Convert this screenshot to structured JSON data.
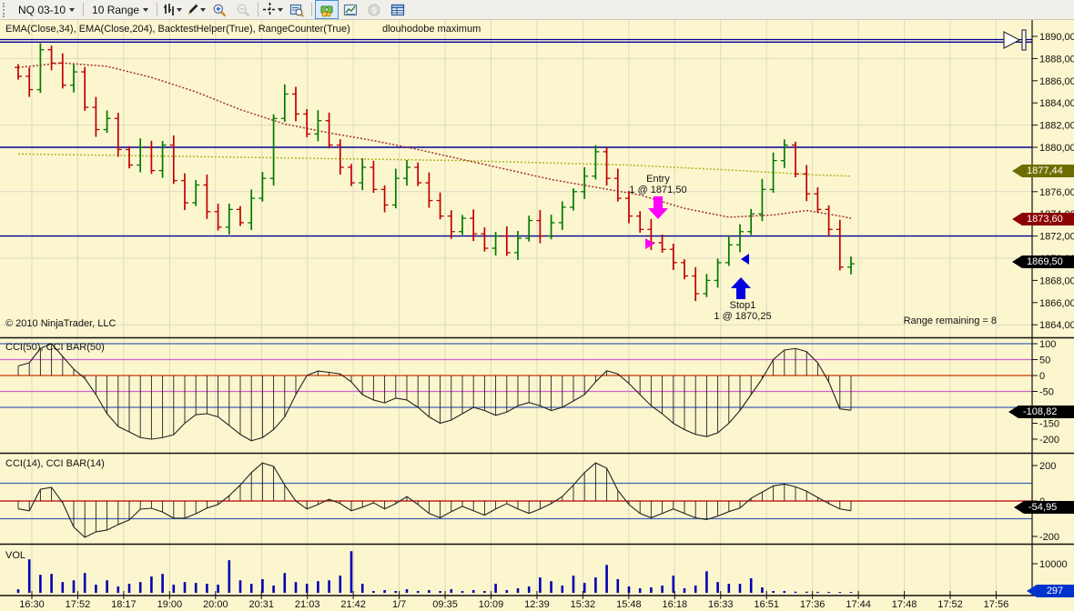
{
  "colors": {
    "background": "#fcf6ce",
    "bar_up": "#007a00",
    "bar_down": "#c00000",
    "ema34": "#a03030",
    "ema204": "#b3b324",
    "navy_line": "#000099",
    "cci_zero": "#cc3300",
    "cci_pink": "#cc66cc",
    "cci_blue": "#3c64b4",
    "volume": "#0000b0",
    "badge_ema204": "#6e6e00",
    "badge_ema34": "#8b0000",
    "badge_black": "#000000",
    "badge_volume": "#0033cc",
    "entry_marker": "#ff00ff",
    "stop_marker": "#0000e0"
  },
  "toolbar": {
    "instrument": "NQ 03-10",
    "interval": "10 Range",
    "icons": [
      "chart-style-icon",
      "drawing-tools-icon",
      "zoom-in-icon",
      "zoom-out-icon",
      "crosshair-icon",
      "data-box-icon",
      "chart-trader-icon",
      "chart-window-icon",
      "dollar-icon",
      "data-grid-icon"
    ]
  },
  "chart": {
    "indicator_label": "EMA(Close,34), EMA(Close,204), BacktestHelper(True), RangeCounter(True)",
    "annotation_max": "dlouhodobe maximum",
    "copyright": "© 2010 NinjaTrader, LLC",
    "range_remaining": "Range remaining = 8",
    "entry": {
      "line1": "Entry",
      "line2": "1 @ 1871,50"
    },
    "stop": {
      "line1": "Stop1",
      "line2": "1 @ 1870,25"
    }
  },
  "badges": {
    "ema204": "1877,44",
    "ema34": "1873,60",
    "last_price": "1869,50",
    "cci50": "-108,82",
    "cci14": "-54,95",
    "volume": "297"
  },
  "panels": {
    "cci50": {
      "label": "CCI(50), CCI BAR(50)"
    },
    "cci14": {
      "label": "CCI(14), CCI BAR(14)"
    },
    "vol": {
      "label": "VOL"
    }
  },
  "chart_data": {
    "type": "bar",
    "x_labels": [
      "16:30",
      "17:52",
      "18:17",
      "19:00",
      "20:00",
      "20:31",
      "21:03",
      "21:42",
      "1/7",
      "09:35",
      "10:09",
      "12:39",
      "15:32",
      "15:48",
      "16:18",
      "16:33",
      "16:51",
      "17:36",
      "17:44",
      "17:48",
      "17:52",
      "17:56"
    ],
    "panels": {
      "price": {
        "first_open": 1887.2,
        "closes": [
          1886.4,
          1885.2,
          1888.8,
          1887.6,
          1885.6,
          1886.8,
          1883.6,
          1881.6,
          1882.6,
          1879.8,
          1878.4,
          1880.0,
          1877.9,
          1880.2,
          1877.0,
          1875.0,
          1876.6,
          1874.2,
          1872.8,
          1874.4,
          1873.2,
          1875.4,
          1877.2,
          1882.6,
          1884.8,
          1883.0,
          1881.2,
          1882.4,
          1880.2,
          1878.2,
          1876.8,
          1878.2,
          1876.2,
          1874.8,
          1877.2,
          1878.2,
          1876.8,
          1875.2,
          1873.8,
          1872.4,
          1873.6,
          1872.2,
          1870.9,
          1872.0,
          1870.5,
          1871.8,
          1873.4,
          1872.0,
          1873.2,
          1874.6,
          1876.0,
          1877.4,
          1879.6,
          1877.2,
          1875.4,
          1873.8,
          1872.6,
          1871.4,
          1870.8,
          1869.6,
          1868.4,
          1866.8,
          1868.0,
          1869.6,
          1871.2,
          1872.4,
          1874.0,
          1876.2,
          1878.8,
          1880.2,
          1877.6,
          1875.8,
          1874.4,
          1872.6,
          1869.2,
          1869.5
        ],
        "ema34": [
          [
            0,
            1887.2
          ],
          [
            4,
            1887.6
          ],
          [
            8,
            1887.3
          ],
          [
            12,
            1886.3
          ],
          [
            16,
            1885.0
          ],
          [
            20,
            1883.4
          ],
          [
            24,
            1882.1
          ],
          [
            28,
            1881.3
          ],
          [
            32,
            1880.6
          ],
          [
            36,
            1879.8
          ],
          [
            40,
            1878.9
          ],
          [
            44,
            1878.0
          ],
          [
            48,
            1877.1
          ],
          [
            52,
            1876.4
          ],
          [
            56,
            1875.7
          ],
          [
            60,
            1874.5
          ],
          [
            64,
            1873.7
          ],
          [
            68,
            1873.9
          ],
          [
            71,
            1874.3
          ],
          [
            74,
            1873.8
          ],
          [
            75,
            1873.6
          ]
        ],
        "ema204": [
          [
            0,
            1879.4
          ],
          [
            20,
            1879.1
          ],
          [
            40,
            1878.8
          ],
          [
            55,
            1878.4
          ],
          [
            65,
            1877.9
          ],
          [
            72,
            1877.5
          ],
          [
            75,
            1877.4
          ]
        ],
        "hlines": [
          1880,
          1872
        ],
        "max_line_price": 1889.7,
        "ticks": [
          [
            1890,
            "1890,00"
          ],
          [
            1888,
            "1888,00"
          ],
          [
            1886,
            "1886,00"
          ],
          [
            1884,
            "1884,00"
          ],
          [
            1882,
            "1882,00"
          ],
          [
            1880,
            "1880,00"
          ],
          [
            1878,
            "1878,00"
          ],
          [
            1876,
            "1876,00"
          ],
          [
            1874,
            "1874,00"
          ],
          [
            1872,
            "1872,00"
          ],
          [
            1870,
            "1870,00"
          ],
          [
            1868,
            "1868,00"
          ],
          [
            1866,
            "1866,00"
          ],
          [
            1864,
            "1864,00"
          ]
        ],
        "entry_price": 1871.5,
        "stop_price": 1870.25,
        "last_price": 1869.5
      },
      "cci50": {
        "values": [
          30,
          40,
          85,
          100,
          60,
          20,
          -9,
          -60,
          -120,
          -160,
          -177,
          -195,
          -200,
          -195,
          -186,
          -150,
          -123,
          -120,
          -130,
          -157,
          -185,
          -205,
          -195,
          -170,
          -130,
          -60,
          0,
          14,
          10,
          5,
          -20,
          -60,
          -77,
          -86,
          -71,
          -77,
          -100,
          -130,
          -150,
          -140,
          -120,
          -100,
          -110,
          -125,
          -115,
          -95,
          -85,
          -95,
          -110,
          -100,
          -80,
          -60,
          -20,
          15,
          5,
          -25,
          -60,
          -95,
          -120,
          -150,
          -170,
          -185,
          -192,
          -180,
          -150,
          -110,
          -60,
          -10,
          50,
          80,
          85,
          75,
          40,
          -20,
          -105,
          -109
        ],
        "levels": [
          [
            100,
            "#3c64b4"
          ],
          [
            50,
            "#cc66cc"
          ],
          [
            0,
            "#cc3300"
          ],
          [
            -50,
            "#cc66cc"
          ],
          [
            -100,
            "#3c64b4"
          ]
        ],
        "ticks": [
          [
            100,
            "100"
          ],
          [
            50,
            "50"
          ],
          [
            0,
            "0"
          ],
          [
            -50,
            "-50"
          ],
          [
            -150,
            "-150"
          ],
          [
            -200,
            "-200"
          ]
        ],
        "last": -108.82
      },
      "cci14": {
        "values": [
          -44,
          -56,
          66,
          77,
          -10,
          -147,
          -205,
          -174,
          -164,
          -133,
          -107,
          -46,
          -41,
          -62,
          -97,
          -97,
          -72,
          -40,
          -20,
          30,
          90,
          160,
          215,
          195,
          90,
          0,
          -45,
          -20,
          10,
          -15,
          -55,
          -35,
          -10,
          -45,
          -15,
          25,
          -20,
          -70,
          -95,
          -60,
          -30,
          -55,
          -80,
          -45,
          -15,
          -45,
          -70,
          -45,
          -15,
          25,
          90,
          160,
          215,
          185,
          60,
          -20,
          -70,
          -95,
          -70,
          -45,
          -70,
          -95,
          -105,
          -85,
          -60,
          -40,
          15,
          50,
          85,
          95,
          80,
          55,
          20,
          -15,
          -45,
          -55
        ],
        "levels": [
          [
            100,
            "#3c64b4"
          ],
          [
            0,
            "#bb0000"
          ],
          [
            -100,
            "#3c64b4"
          ]
        ],
        "ticks": [
          [
            200,
            "200"
          ],
          [
            0,
            "0"
          ],
          [
            -200,
            "-200"
          ]
        ],
        "last": -54.95
      },
      "volume": {
        "values": [
          1200,
          11500,
          6200,
          6500,
          3700,
          4300,
          6800,
          2800,
          4300,
          2200,
          3100,
          3700,
          5600,
          6500,
          2800,
          3700,
          3400,
          3100,
          2800,
          11200,
          4300,
          3100,
          4700,
          2500,
          6800,
          3700,
          3100,
          4000,
          4300,
          5900,
          14300,
          3100,
          620,
          930,
          620,
          1240,
          620,
          930,
          620,
          1240,
          620,
          930,
          620,
          3100,
          930,
          1550,
          2200,
          5300,
          4000,
          2500,
          5900,
          3400,
          5300,
          9600,
          4700,
          2200,
          1550,
          1860,
          2500,
          5900,
          1550,
          2500,
          7400,
          3700,
          3100,
          3100,
          5000,
          1860,
          620,
          620,
          400,
          400,
          350,
          320,
          300,
          297
        ],
        "ticks": [
          [
            10000,
            "10000"
          ]
        ],
        "last": 297
      }
    }
  }
}
